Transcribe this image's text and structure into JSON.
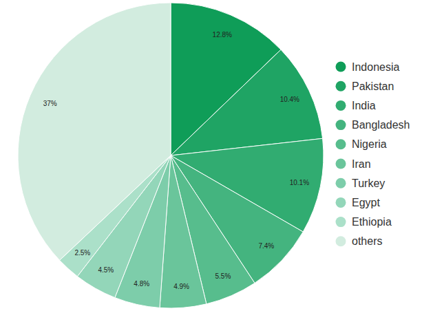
{
  "chart_data": {
    "type": "pie",
    "categories": [
      "Indonesia",
      "Pakistan",
      "India",
      "Bangladesh",
      "Nigeria",
      "Iran",
      "Turkey",
      "Egypt",
      "Ethiopia",
      "others"
    ],
    "values": [
      12.8,
      10.4,
      10.1,
      7.4,
      5.5,
      4.9,
      4.8,
      4.5,
      2.5,
      37
    ],
    "value_labels": [
      "12.8%",
      "10.4%",
      "10.1%",
      "7.4%",
      "5.5%",
      "4.9%",
      "4.8%",
      "4.5%",
      "2.5%",
      "37%"
    ],
    "colors": [
      "#0f9d58",
      "#1fa464",
      "#31ac71",
      "#44b47f",
      "#57bd8d",
      "#6ac59b",
      "#7dcdaa",
      "#93d6b9",
      "#abe0c9",
      "#d2ecdf"
    ],
    "data_labels": true,
    "legend": "right"
  }
}
